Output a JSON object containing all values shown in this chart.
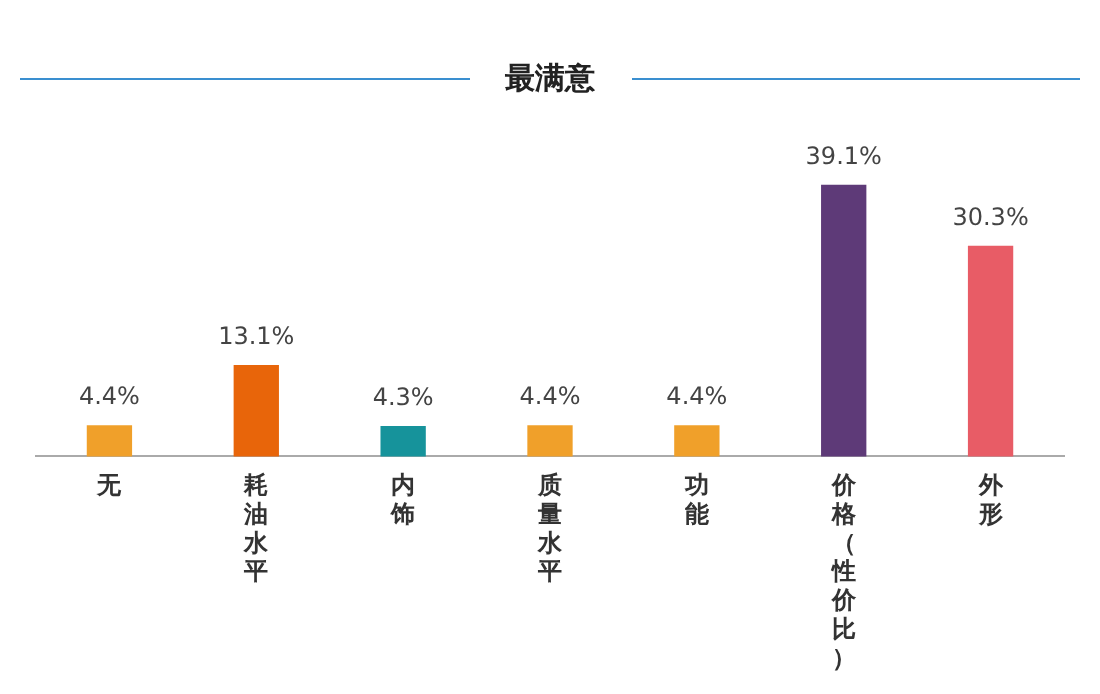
{
  "chart_data": {
    "type": "bar",
    "title": "最满意",
    "categories": [
      "无",
      "耗油水平",
      "内饰",
      "质量水平",
      "功能",
      "价格（性价比）",
      "外形"
    ],
    "values": [
      4.4,
      13.1,
      4.3,
      4.4,
      4.4,
      39.1,
      30.3
    ],
    "value_labels": [
      "4.4%",
      "13.1%",
      "4.3%",
      "4.4%",
      "4.4%",
      "39.1%",
      "30.3%"
    ],
    "colors": [
      "#f0a02a",
      "#e8650a",
      "#16939b",
      "#f0a02a",
      "#f0a02a",
      "#5e3a78",
      "#e85c66"
    ],
    "grid": false,
    "legend": false
  }
}
